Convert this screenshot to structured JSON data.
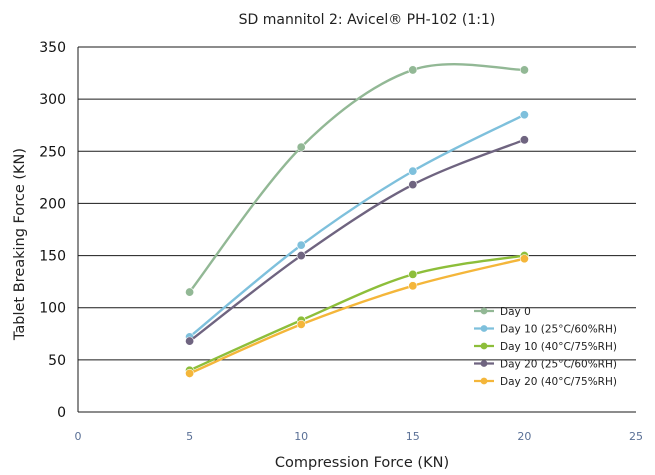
{
  "chart_data": {
    "type": "line",
    "title": "SD mannitol 2: Avicel® PH-102 (1:1)",
    "xlabel": "Compression Force (KN)",
    "ylabel": "Tablet Breaking Force (KN)",
    "xlim": [
      0,
      25
    ],
    "ylim": [
      0,
      350
    ],
    "xticks": [
      0,
      5,
      10,
      15,
      20,
      25
    ],
    "yticks": [
      0,
      50,
      100,
      150,
      200,
      250,
      300,
      350
    ],
    "grid": "horizontal",
    "legend_position": "right",
    "series": [
      {
        "name": "Day 0",
        "color": "#92b895",
        "x": [
          5,
          10,
          15,
          20
        ],
        "y": [
          115,
          254,
          328,
          328
        ]
      },
      {
        "name": "Day 10 (25°C/60%RH)",
        "color": "#7ec0dc",
        "x": [
          5,
          10,
          15,
          20
        ],
        "y": [
          72,
          160,
          231,
          285
        ]
      },
      {
        "name": "Day 10 (40°C/75%RH)",
        "color": "#8dbe3a",
        "x": [
          5,
          10,
          15,
          20
        ],
        "y": [
          40,
          88,
          132,
          150
        ]
      },
      {
        "name": "Day 20 (25°C/60%RH)",
        "color": "#6f6480",
        "x": [
          5,
          10,
          15,
          20
        ],
        "y": [
          68,
          150,
          218,
          261
        ]
      },
      {
        "name": "Day 20 (40°C/75%RH)",
        "color": "#f4b63a",
        "x": [
          5,
          10,
          15,
          20
        ],
        "y": [
          37,
          84,
          121,
          147
        ]
      }
    ]
  }
}
